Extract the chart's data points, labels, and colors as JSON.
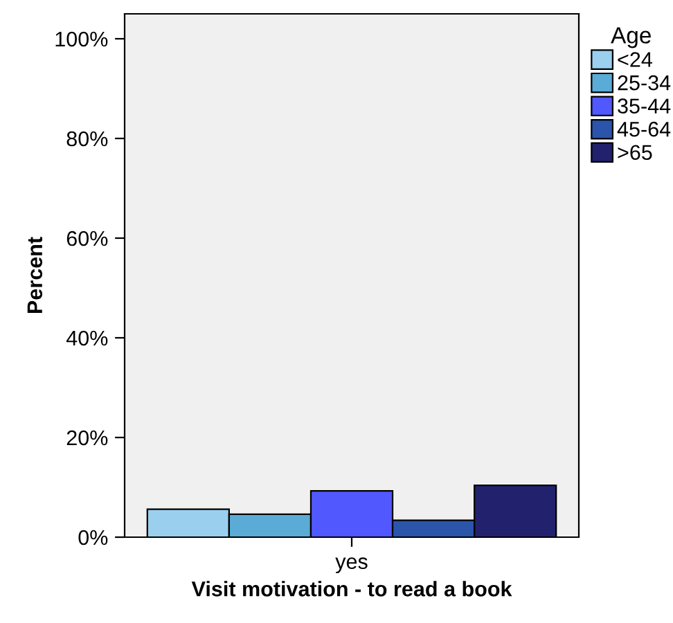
{
  "chart_data": {
    "type": "bar",
    "xlabel": "Visit motivation - to read a book",
    "ylabel": "Percent",
    "legend_title": "Age",
    "categories": [
      "yes"
    ],
    "series": [
      {
        "name": "<24",
        "color": "#9acfee",
        "values": [
          5.6
        ]
      },
      {
        "name": "25-34",
        "color": "#5aabd6",
        "values": [
          4.6
        ]
      },
      {
        "name": "35-44",
        "color": "#5158fd",
        "values": [
          9.3
        ]
      },
      {
        "name": "45-64",
        "color": "#2a55ab",
        "values": [
          3.4
        ]
      },
      {
        "name": ">65",
        "color": "#22216e",
        "values": [
          10.4
        ]
      }
    ],
    "ylim": [
      0,
      105
    ],
    "yticks": [
      {
        "value": 0,
        "label": "0%"
      },
      {
        "value": 20,
        "label": "20%"
      },
      {
        "value": 40,
        "label": "40%"
      },
      {
        "value": 60,
        "label": "60%"
      },
      {
        "value": 80,
        "label": "80%"
      },
      {
        "value": 100,
        "label": "100%"
      }
    ],
    "grid": false,
    "legend": "right"
  }
}
